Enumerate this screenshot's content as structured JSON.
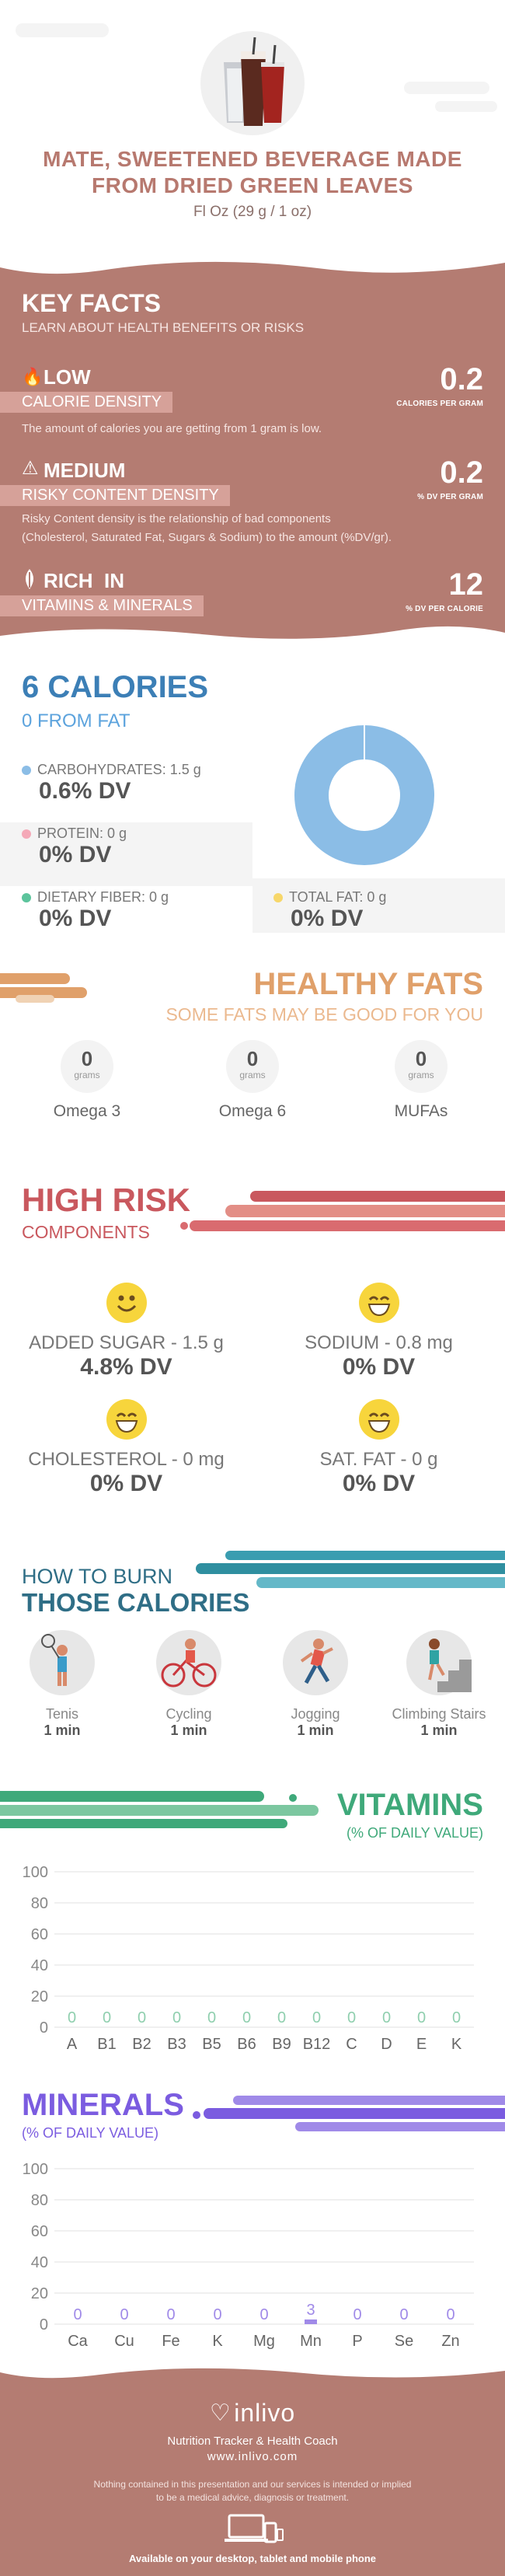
{
  "header": {
    "title_line1": "MATE, SWEETENED BEVERAGE MADE",
    "title_line2": "FROM DRIED GREEN LEAVES",
    "serving": "Fl Oz (29 g / 1 oz)"
  },
  "key_facts": {
    "title": "KEY FACTS",
    "subtitle": "LEARN ABOUT HEALTH BENEFITS OR RISKS",
    "low": {
      "level": "LOW",
      "label": "CALORIE DENSITY",
      "value": "0.2",
      "unit": "CALORIES PER GRAM",
      "desc": "The amount of calories you are getting from 1 gram is low."
    },
    "medium": {
      "level": "MEDIUM",
      "label": "RISKY CONTENT DENSITY",
      "value": "0.2",
      "unit": "% DV PER GRAM",
      "desc1": "Risky Content density is the relationship of bad components",
      "desc2": "(Cholesterol, Saturated Fat, Sugars & Sodium) to the amount (%DV/gr)."
    },
    "rich": {
      "level": "RICH  IN",
      "label": "VITAMINS & MINERALS",
      "value": "12",
      "unit": "% DV PER CALORIE"
    }
  },
  "calories": {
    "title": "6 CALORIES",
    "from_fat": "0 FROM FAT",
    "carbs_label": "CARBOHYDRATES: 1.5 g",
    "carbs_dv": "0.6% DV",
    "protein_label": "PROTEIN: 0 g",
    "protein_dv": "0% DV",
    "fiber_label": "DIETARY FIBER: 0 g",
    "fiber_dv": "0% DV",
    "fat_label": "TOTAL FAT: 0 g",
    "fat_dv": "0% DV"
  },
  "colors": {
    "carbs": "#8bbde6",
    "protein": "#f4a9b8",
    "fiber": "#5cc49c",
    "fat": "#f7d76a",
    "brand": "#b47c72",
    "fats_orange": "#e0a06a",
    "risk_red": "#c9585e",
    "burn_teal": "#2f8fa0",
    "vitamin_green": "#3fa97a",
    "mineral_purple": "#7b5ce0"
  },
  "healthy_fats": {
    "title": "HEALTHY FATS",
    "subtitle": "SOME FATS MAY BE GOOD FOR YOU",
    "items": [
      {
        "value": "0",
        "unit": "grams",
        "name": "Omega 3"
      },
      {
        "value": "0",
        "unit": "grams",
        "name": "Omega 6"
      },
      {
        "value": "0",
        "unit": "grams",
        "name": "MUFAs"
      }
    ]
  },
  "high_risk": {
    "title": "HIGH RISK",
    "subtitle": "COMPONENTS",
    "items": [
      {
        "label": "ADDED SUGAR - 1.5 g",
        "dv": "4.8% DV"
      },
      {
        "label": "SODIUM - 0.8 mg",
        "dv": "0% DV"
      },
      {
        "label": "CHOLESTEROL - 0 mg",
        "dv": "0% DV"
      },
      {
        "label": "SAT. FAT - 0 g",
        "dv": "0% DV"
      }
    ]
  },
  "burn": {
    "title1": "HOW TO BURN",
    "title2": "THOSE CALORIES",
    "items": [
      {
        "name": "Tenis",
        "time": "1 min"
      },
      {
        "name": "Cycling",
        "time": "1 min"
      },
      {
        "name": "Jogging",
        "time": "1 min"
      },
      {
        "name": "Climbing Stairs",
        "time": "1 min"
      }
    ]
  },
  "vitamins": {
    "title": "VITAMINS",
    "subtitle": "(% OF DAILY VALUE)"
  },
  "minerals": {
    "title": "MINERALS",
    "subtitle": "(% OF DAILY VALUE)"
  },
  "chart_data": [
    {
      "type": "bar",
      "title": "VITAMINS",
      "subtitle": "(% OF DAILY VALUE)",
      "categories": [
        "A",
        "B1",
        "B2",
        "B3",
        "B5",
        "B6",
        "B9",
        "B12",
        "C",
        "D",
        "E",
        "K"
      ],
      "values": [
        0,
        0,
        0,
        0,
        0,
        0,
        0,
        0,
        0,
        0,
        0,
        0
      ],
      "yticks": [
        0,
        20,
        40,
        60,
        80,
        100
      ],
      "ylim": [
        0,
        100
      ],
      "grid": true
    },
    {
      "type": "bar",
      "title": "MINERALS",
      "subtitle": "(% OF DAILY VALUE)",
      "categories": [
        "Ca",
        "Cu",
        "Fe",
        "K",
        "Mg",
        "Mn",
        "P",
        "Se",
        "Zn"
      ],
      "values": [
        0,
        0,
        0,
        0,
        0,
        3,
        0,
        0,
        0
      ],
      "yticks": [
        0,
        20,
        40,
        60,
        80,
        100
      ],
      "ylim": [
        0,
        100
      ],
      "grid": true
    }
  ],
  "footer": {
    "brand": "inlivo",
    "tagline": "Nutrition Tracker & Health Coach",
    "url": "www.inlivo.com",
    "disclaimer1": "Nothing contained in this presentation and our services is intended or implied",
    "disclaimer2": "to be a medical advice, diagnosis or treatment.",
    "available": "Available on your desktop, tablet and mobile phone"
  }
}
